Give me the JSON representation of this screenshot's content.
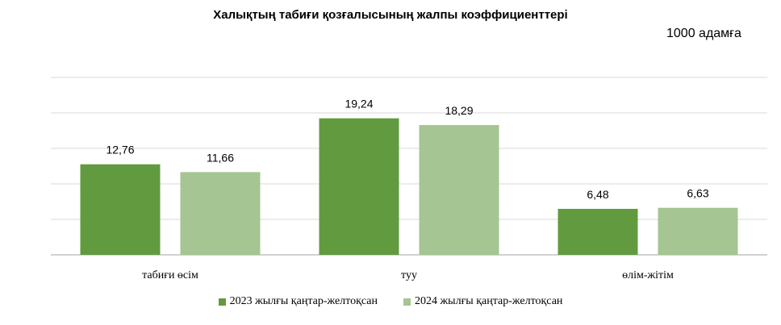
{
  "chart_data": {
    "type": "bar",
    "title": "Халықтың табиғи қозғалысының жалпы коэффициенттері",
    "unit_label": "1000 адамға",
    "categories": [
      "табиғи өсім",
      "туу",
      "өлім-жітім"
    ],
    "series": [
      {
        "name": "2023 жылғы қаңтар-желтоқсан",
        "values": [
          12.76,
          19.24,
          6.48
        ],
        "labels": [
          "12,76",
          "19,24",
          "6,48"
        ],
        "color": "#629b3f"
      },
      {
        "name": "2024 жылғы қаңтар-желтоқсан",
        "values": [
          11.66,
          18.29,
          6.63
        ],
        "labels": [
          "11,66",
          "18,29",
          "6,63"
        ],
        "color": "#a5c593"
      }
    ],
    "ylim": [
      0,
      25
    ],
    "grid": true,
    "legend_position": "bottom"
  }
}
